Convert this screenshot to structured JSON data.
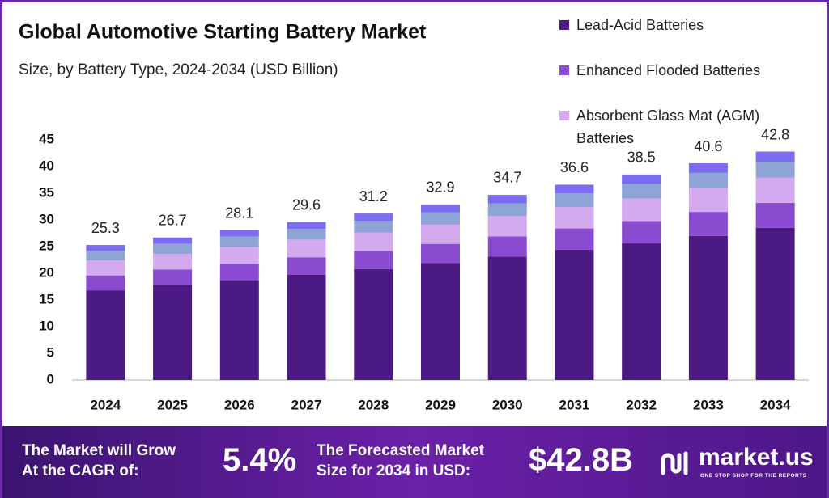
{
  "chart_data": {
    "type": "stacked-bar",
    "title": "Global Automotive Starting Battery Market",
    "subtitle": "Size, by Battery Type, 2024-2034 (USD Billion)",
    "categories": [
      "2024",
      "2025",
      "2026",
      "2027",
      "2028",
      "2029",
      "2030",
      "2031",
      "2032",
      "2033",
      "2034"
    ],
    "series": [
      {
        "name": "Lead-Acid Batteries",
        "color": "#4b1b83",
        "values": [
          16.8,
          17.8,
          18.7,
          19.7,
          20.8,
          21.9,
          23.1,
          24.4,
          25.6,
          27.0,
          28.5
        ]
      },
      {
        "name": "Enhanced Flooded Batteries",
        "color": "#8a4bd0",
        "values": [
          2.8,
          2.9,
          3.1,
          3.3,
          3.4,
          3.6,
          3.8,
          4.0,
          4.2,
          4.5,
          4.7
        ]
      },
      {
        "name": "Absorbent Glass Mat (AGM) Batteries",
        "color": "#d4aaee",
        "values": [
          2.8,
          2.9,
          3.1,
          3.3,
          3.4,
          3.6,
          3.8,
          4.0,
          4.2,
          4.5,
          4.7
        ]
      },
      {
        "color": "#8ea3d6",
        "values": [
          1.8,
          1.9,
          2.0,
          2.0,
          2.2,
          2.3,
          2.4,
          2.6,
          2.7,
          2.8,
          3.0
        ]
      },
      {
        "color": "#7c6cf0",
        "values": [
          1.1,
          1.2,
          1.2,
          1.3,
          1.4,
          1.5,
          1.6,
          1.6,
          1.8,
          1.8,
          1.9
        ]
      }
    ],
    "totals": [
      25.3,
      26.7,
      28.1,
      29.6,
      31.2,
      32.9,
      34.7,
      36.6,
      38.5,
      40.6,
      42.8
    ],
    "ylim": [
      0,
      45
    ],
    "yticks": [
      0,
      5,
      10,
      15,
      20,
      25,
      30,
      35,
      40,
      45
    ],
    "grid": false
  },
  "footer": {
    "cagr_label": [
      "The Market will Grow",
      "At the CAGR of:"
    ],
    "cagr": "5.4%",
    "forecast_label": [
      "The Forecasted Market",
      "Size for 2034 in USD:"
    ],
    "forecast": "$42.8B",
    "brand": "market.us",
    "tagline": "ONE STOP SHOP FOR THE REPORTS"
  }
}
